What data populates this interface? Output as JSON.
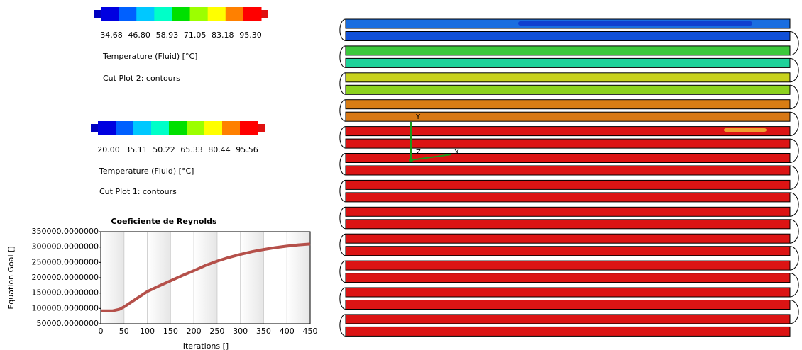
{
  "legend_top": {
    "labels": [
      "34.68",
      "46.80",
      "58.93",
      "71.05",
      "83.18",
      "95.30"
    ],
    "title": "Temperature (Fluid) [°C]",
    "caption": "Cut Plot 2: contours"
  },
  "legend_bottom": {
    "labels": [
      "20.00",
      "35.11",
      "50.22",
      "65.33",
      "80.44",
      "95.56"
    ],
    "title": "Temperature (Fluid) [°C]",
    "caption": "Cut Plot 1: contours"
  },
  "triad": {
    "y": "Y",
    "z": "Z",
    "x": "X"
  },
  "chart_data": {
    "type": "line",
    "title": "Coeficiente de Reynolds",
    "x_label": "Iterations []",
    "y_label": "Equation Goal []",
    "x": [
      0,
      25,
      40,
      50,
      75,
      100,
      125,
      150,
      175,
      200,
      225,
      250,
      275,
      300,
      325,
      350,
      375,
      400,
      425,
      450
    ],
    "values": [
      92000,
      92000,
      97000,
      105000,
      130000,
      155000,
      173000,
      190000,
      207000,
      223000,
      240000,
      254000,
      266000,
      276000,
      285000,
      292000,
      298000,
      303000,
      307000,
      310000
    ],
    "color": "#b5504a",
    "xlim": [
      0,
      450
    ],
    "xticks": [
      0,
      50,
      100,
      150,
      200,
      250,
      300,
      350,
      400,
      450
    ],
    "ylim": [
      50000,
      350000
    ],
    "yticks": [
      {
        "value": 50000,
        "label": "50000.0000000"
      },
      {
        "value": 100000,
        "label": "100000.0000000"
      },
      {
        "value": 150000,
        "label": "150000.0000000"
      },
      {
        "value": 200000,
        "label": "200000.0000000"
      },
      {
        "value": 250000,
        "label": "250000.0000000"
      },
      {
        "value": 300000,
        "label": "300000.0000000"
      },
      {
        "value": 350000,
        "label": "350000.0000000"
      }
    ]
  }
}
